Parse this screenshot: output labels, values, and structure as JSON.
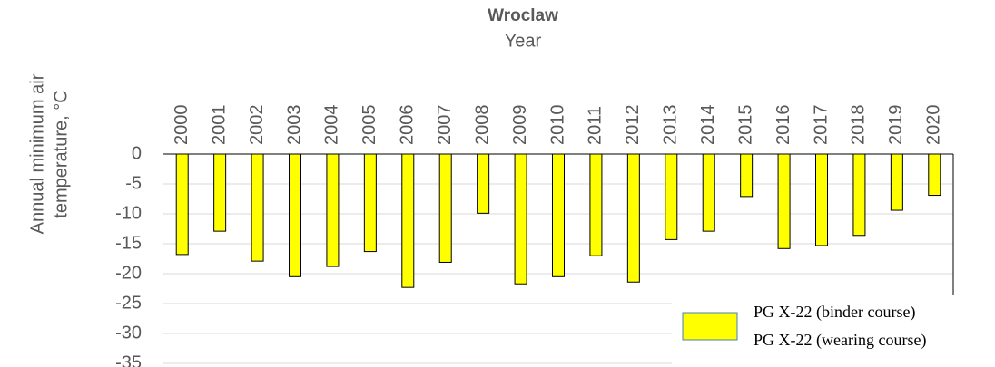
{
  "chart_data": {
    "type": "bar",
    "title": "Wroclaw",
    "x_label": "Year",
    "y_label": [
      "Annual minimum air",
      "temperature, °C"
    ],
    "categories": [
      "2000",
      "2001",
      "2002",
      "2003",
      "2004",
      "2005",
      "2006",
      "2007",
      "2008",
      "2009",
      "2010",
      "2011",
      "2012",
      "2013",
      "2014",
      "2015",
      "2016",
      "2017",
      "2018",
      "2019",
      "2020"
    ],
    "values": [
      -16.8,
      -12.9,
      -17.9,
      -20.5,
      -18.8,
      -16.3,
      -22.3,
      -18.1,
      -9.9,
      -21.7,
      -20.5,
      -17.0,
      -21.4,
      -14.3,
      -12.9,
      -7.1,
      -15.8,
      -15.3,
      -13.6,
      -9.4,
      -6.9
    ],
    "color": "#ffff00",
    "legend_entries": [
      "PG X-22 (binder course)",
      "PG X-22 (wearing course)"
    ],
    "ylim": [
      -35,
      0
    ],
    "yticks": [
      0,
      -5,
      -10,
      -15,
      -20,
      -25,
      -30,
      -35
    ],
    "grid": true
  }
}
